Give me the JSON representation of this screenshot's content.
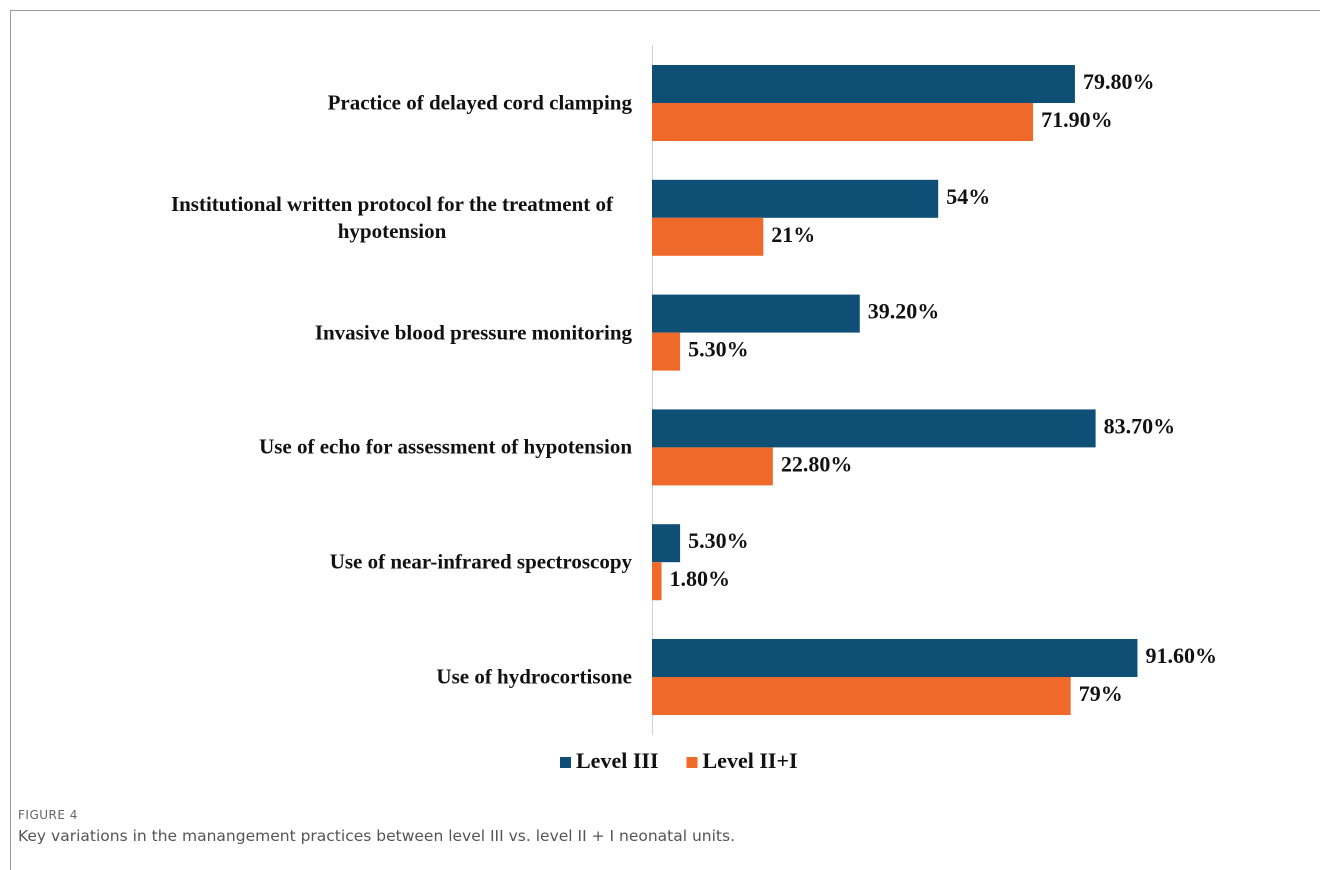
{
  "chart_data": {
    "type": "bar",
    "orientation": "horizontal",
    "categories": [
      "Practice of delayed cord clamping",
      "Institutional written protocol for the treatment of hypotension",
      "Invasive blood pressure monitoring",
      "Use of echo for assessment of hypotension",
      "Use of near-infrared spectroscopy",
      "Use of hydrocortisone"
    ],
    "series": [
      {
        "name": "Level III",
        "color": "#0f4f75",
        "values": [
          79.8,
          54,
          39.2,
          83.7,
          5.3,
          91.6
        ],
        "value_labels": [
          "79.80%",
          "54%",
          "39.20%",
          "83.70%",
          "5.30%",
          "91.60%"
        ]
      },
      {
        "name": "Level II+I",
        "color": "#ef6a2a",
        "values": [
          71.9,
          21,
          5.3,
          22.8,
          1.8,
          79
        ],
        "value_labels": [
          "71.90%",
          "21%",
          "5.30%",
          "22.80%",
          "1.80%",
          "79%"
        ]
      }
    ],
    "xlim": [
      0,
      100
    ],
    "legend": "bottom"
  },
  "caption": {
    "label": "FIGURE 4",
    "text": "Key variations in the manangement practices between level III vs. level II + I neonatal units."
  }
}
